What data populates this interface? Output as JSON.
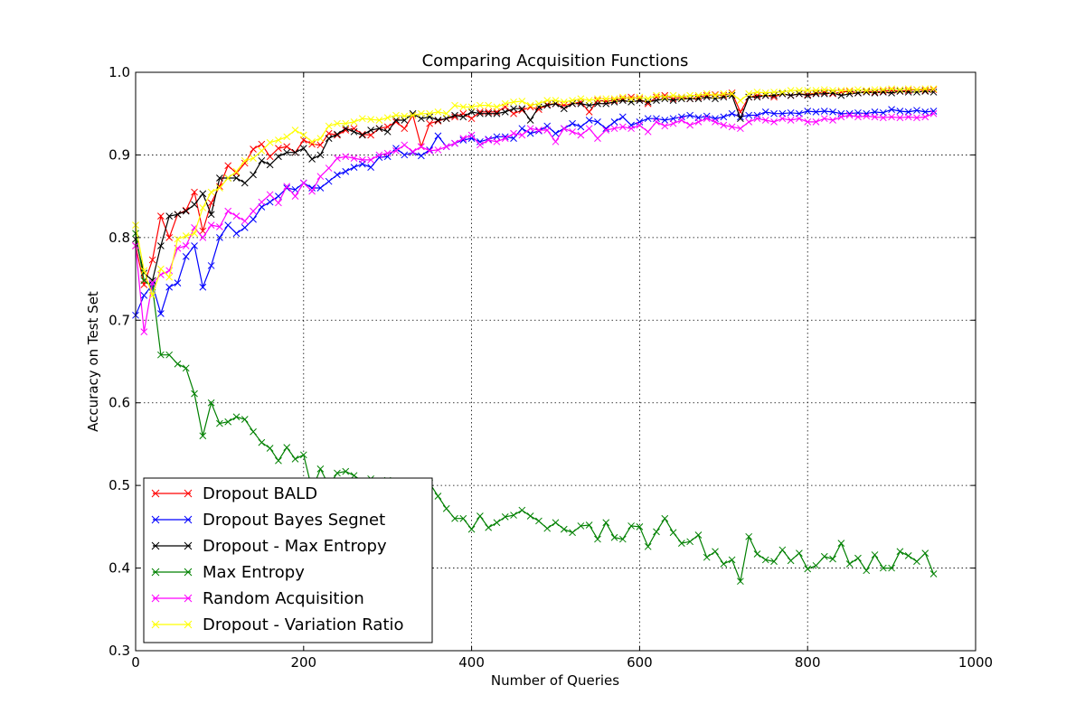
{
  "chart_data": {
    "type": "line",
    "title": "Comparing Acquisition Functions",
    "xlabel": "Number of Queries",
    "ylabel": "Accuracy on Test Set",
    "xlim": [
      0,
      1000
    ],
    "ylim": [
      0.3,
      1.0
    ],
    "xticks": [
      0,
      200,
      400,
      600,
      800,
      1000
    ],
    "xtick_labels": [
      "0",
      "200",
      "400",
      "600",
      "800",
      "1000"
    ],
    "yticks": [
      0.3,
      0.4,
      0.5,
      0.6,
      0.7,
      0.8,
      0.9,
      1.0
    ],
    "ytick_labels": [
      "0.3",
      "0.4",
      "0.5",
      "0.6",
      "0.7",
      "0.8",
      "0.9",
      "1.0"
    ],
    "grid": true,
    "legend_position": "lower-left",
    "marker": "x",
    "x": [
      0,
      10,
      20,
      30,
      40,
      50,
      60,
      70,
      80,
      90,
      100,
      110,
      120,
      130,
      140,
      150,
      160,
      170,
      180,
      190,
      200,
      210,
      220,
      230,
      240,
      250,
      260,
      270,
      280,
      290,
      300,
      310,
      320,
      330,
      340,
      350,
      360,
      370,
      380,
      390,
      400,
      410,
      420,
      430,
      440,
      450,
      460,
      470,
      480,
      490,
      500,
      510,
      520,
      530,
      540,
      550,
      560,
      570,
      580,
      590,
      600,
      610,
      620,
      630,
      640,
      650,
      660,
      670,
      680,
      690,
      700,
      710,
      720,
      730,
      740,
      750,
      760,
      770,
      780,
      790,
      800,
      810,
      820,
      830,
      840,
      850,
      860,
      870,
      880,
      890,
      900,
      910,
      920,
      930,
      940,
      950
    ],
    "series": [
      {
        "name": "Dropout BALD",
        "color": "#ff0000",
        "values": [
          0.79,
          0.743,
          0.773,
          0.826,
          0.8,
          0.828,
          0.833,
          0.855,
          0.808,
          0.842,
          0.862,
          0.887,
          0.878,
          0.89,
          0.907,
          0.913,
          0.898,
          0.908,
          0.91,
          0.903,
          0.918,
          0.913,
          0.912,
          0.926,
          0.924,
          0.93,
          0.932,
          0.925,
          0.924,
          0.932,
          0.934,
          0.94,
          0.932,
          0.948,
          0.91,
          0.938,
          0.941,
          0.944,
          0.946,
          0.95,
          0.944,
          0.952,
          0.952,
          0.952,
          0.958,
          0.95,
          0.954,
          0.958,
          0.955,
          0.961,
          0.962,
          0.96,
          0.962,
          0.964,
          0.952,
          0.966,
          0.965,
          0.966,
          0.968,
          0.97,
          0.968,
          0.962,
          0.97,
          0.972,
          0.968,
          0.97,
          0.968,
          0.97,
          0.972,
          0.973,
          0.972,
          0.975,
          0.952,
          0.97,
          0.972,
          0.972,
          0.97,
          0.974,
          0.972,
          0.974,
          0.973,
          0.975,
          0.976,
          0.974,
          0.976,
          0.977,
          0.975,
          0.977,
          0.976,
          0.977,
          0.978,
          0.977,
          0.978,
          0.979,
          0.978,
          0.979
        ]
      },
      {
        "name": "Dropout Bayes Segnet",
        "color": "#0000ff",
        "values": [
          0.706,
          0.73,
          0.743,
          0.708,
          0.74,
          0.745,
          0.777,
          0.79,
          0.74,
          0.766,
          0.8,
          0.815,
          0.805,
          0.812,
          0.822,
          0.837,
          0.843,
          0.85,
          0.86,
          0.858,
          0.866,
          0.86,
          0.86,
          0.868,
          0.876,
          0.88,
          0.885,
          0.889,
          0.885,
          0.897,
          0.898,
          0.908,
          0.9,
          0.903,
          0.899,
          0.906,
          0.923,
          0.91,
          0.914,
          0.918,
          0.92,
          0.916,
          0.919,
          0.922,
          0.922,
          0.92,
          0.932,
          0.926,
          0.929,
          0.935,
          0.926,
          0.932,
          0.938,
          0.934,
          0.942,
          0.94,
          0.932,
          0.94,
          0.946,
          0.936,
          0.94,
          0.944,
          0.944,
          0.942,
          0.944,
          0.946,
          0.948,
          0.945,
          0.947,
          0.944,
          0.946,
          0.95,
          0.946,
          0.948,
          0.948,
          0.952,
          0.95,
          0.95,
          0.951,
          0.95,
          0.953,
          0.952,
          0.953,
          0.952,
          0.95,
          0.95,
          0.951,
          0.95,
          0.952,
          0.951,
          0.955,
          0.953,
          0.952,
          0.954,
          0.952,
          0.953
        ]
      },
      {
        "name": "Dropout - Max Entropy",
        "color": "#000000",
        "values": [
          0.798,
          0.757,
          0.748,
          0.79,
          0.826,
          0.828,
          0.832,
          0.84,
          0.853,
          0.828,
          0.872,
          0.872,
          0.872,
          0.866,
          0.876,
          0.893,
          0.888,
          0.898,
          0.903,
          0.903,
          0.908,
          0.895,
          0.9,
          0.92,
          0.925,
          0.932,
          0.928,
          0.924,
          0.93,
          0.932,
          0.928,
          0.942,
          0.942,
          0.95,
          0.944,
          0.946,
          0.942,
          0.944,
          0.948,
          0.946,
          0.952,
          0.95,
          0.95,
          0.95,
          0.952,
          0.956,
          0.956,
          0.942,
          0.958,
          0.96,
          0.962,
          0.956,
          0.962,
          0.962,
          0.96,
          0.962,
          0.962,
          0.964,
          0.966,
          0.964,
          0.966,
          0.964,
          0.966,
          0.968,
          0.966,
          0.968,
          0.968,
          0.968,
          0.97,
          0.968,
          0.97,
          0.972,
          0.944,
          0.97,
          0.97,
          0.972,
          0.972,
          0.974,
          0.972,
          0.974,
          0.972,
          0.974,
          0.974,
          0.975,
          0.972,
          0.974,
          0.975,
          0.976,
          0.975,
          0.976,
          0.975,
          0.977,
          0.976,
          0.976,
          0.977,
          0.976
        ]
      },
      {
        "name": "Max Entropy",
        "color": "#008000",
        "values": [
          0.805,
          0.748,
          0.74,
          0.658,
          0.658,
          0.647,
          0.642,
          0.611,
          0.56,
          0.6,
          0.575,
          0.577,
          0.583,
          0.58,
          0.565,
          0.552,
          0.545,
          0.53,
          0.546,
          0.532,
          0.537,
          0.495,
          0.52,
          0.5,
          0.515,
          0.517,
          0.512,
          0.505,
          0.508,
          0.503,
          0.506,
          0.501,
          0.5,
          0.498,
          0.5,
          0.503,
          0.487,
          0.472,
          0.46,
          0.46,
          0.447,
          0.463,
          0.449,
          0.455,
          0.462,
          0.464,
          0.47,
          0.463,
          0.457,
          0.448,
          0.455,
          0.447,
          0.443,
          0.451,
          0.452,
          0.435,
          0.455,
          0.437,
          0.435,
          0.451,
          0.45,
          0.426,
          0.444,
          0.46,
          0.443,
          0.43,
          0.432,
          0.44,
          0.413,
          0.42,
          0.405,
          0.41,
          0.384,
          0.438,
          0.417,
          0.41,
          0.408,
          0.422,
          0.409,
          0.418,
          0.399,
          0.403,
          0.414,
          0.411,
          0.43,
          0.405,
          0.412,
          0.397,
          0.416,
          0.4,
          0.4,
          0.42,
          0.415,
          0.408,
          0.418,
          0.393
        ]
      },
      {
        "name": "Random Acquisition",
        "color": "#ff00ff",
        "values": [
          0.79,
          0.686,
          0.745,
          0.755,
          0.76,
          0.787,
          0.79,
          0.812,
          0.8,
          0.815,
          0.813,
          0.832,
          0.826,
          0.82,
          0.832,
          0.843,
          0.852,
          0.842,
          0.862,
          0.85,
          0.866,
          0.856,
          0.874,
          0.884,
          0.896,
          0.898,
          0.896,
          0.894,
          0.894,
          0.9,
          0.902,
          0.905,
          0.912,
          0.904,
          0.91,
          0.905,
          0.906,
          0.91,
          0.914,
          0.92,
          0.924,
          0.912,
          0.918,
          0.916,
          0.92,
          0.926,
          0.924,
          0.932,
          0.93,
          0.93,
          0.916,
          0.932,
          0.928,
          0.924,
          0.932,
          0.92,
          0.93,
          0.932,
          0.934,
          0.932,
          0.936,
          0.928,
          0.94,
          0.935,
          0.938,
          0.942,
          0.936,
          0.94,
          0.944,
          0.94,
          0.936,
          0.934,
          0.932,
          0.94,
          0.944,
          0.942,
          0.94,
          0.944,
          0.942,
          0.944,
          0.94,
          0.94,
          0.944,
          0.942,
          0.946,
          0.948,
          0.946,
          0.947,
          0.946,
          0.945,
          0.946,
          0.945,
          0.946,
          0.945,
          0.946,
          0.95
        ]
      },
      {
        "name": "Dropout - Variation Ratio",
        "color": "#ffff00",
        "values": [
          0.815,
          0.76,
          0.73,
          0.762,
          0.752,
          0.798,
          0.802,
          0.805,
          0.836,
          0.855,
          0.86,
          0.872,
          0.88,
          0.893,
          0.896,
          0.905,
          0.915,
          0.918,
          0.922,
          0.93,
          0.924,
          0.916,
          0.92,
          0.935,
          0.938,
          0.938,
          0.94,
          0.944,
          0.943,
          0.942,
          0.945,
          0.948,
          0.947,
          0.948,
          0.95,
          0.95,
          0.952,
          0.95,
          0.96,
          0.958,
          0.958,
          0.96,
          0.96,
          0.958,
          0.962,
          0.964,
          0.965,
          0.96,
          0.962,
          0.966,
          0.966,
          0.964,
          0.966,
          0.968,
          0.966,
          0.968,
          0.968,
          0.968,
          0.97,
          0.968,
          0.97,
          0.968,
          0.972,
          0.97,
          0.972,
          0.97,
          0.972,
          0.972,
          0.974,
          0.972,
          0.974,
          0.974,
          0.966,
          0.974,
          0.976,
          0.975,
          0.976,
          0.976,
          0.978,
          0.978,
          0.978,
          0.978,
          0.979,
          0.978,
          0.978,
          0.978,
          0.979,
          0.978,
          0.979,
          0.979,
          0.98,
          0.979,
          0.98,
          0.979,
          0.98,
          0.98
        ]
      }
    ]
  }
}
